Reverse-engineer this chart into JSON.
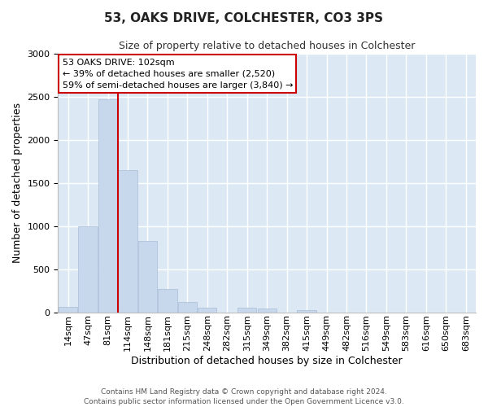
{
  "title": "53, OAKS DRIVE, COLCHESTER, CO3 3PS",
  "subtitle": "Size of property relative to detached houses in Colchester",
  "xlabel": "Distribution of detached houses by size in Colchester",
  "ylabel": "Number of detached properties",
  "bar_color": "#c8d8ec",
  "bar_edgecolor": "#aabdd8",
  "background_color": "#dce9f5",
  "grid_color": "#ffffff",
  "fig_facecolor": "#ffffff",
  "bin_labels": [
    "14sqm",
    "47sqm",
    "81sqm",
    "114sqm",
    "148sqm",
    "181sqm",
    "215sqm",
    "248sqm",
    "282sqm",
    "315sqm",
    "349sqm",
    "382sqm",
    "415sqm",
    "449sqm",
    "482sqm",
    "516sqm",
    "549sqm",
    "583sqm",
    "616sqm",
    "650sqm",
    "683sqm"
  ],
  "bar_heights": [
    60,
    1000,
    2470,
    1650,
    830,
    270,
    120,
    55,
    0,
    55,
    40,
    0,
    20,
    0,
    0,
    0,
    0,
    0,
    0,
    0,
    0
  ],
  "ylim": [
    0,
    3000
  ],
  "yticks": [
    0,
    500,
    1000,
    1500,
    2000,
    2500,
    3000
  ],
  "property_value_bin": 2,
  "vline_color": "#cc0000",
  "annotation_title": "53 OAKS DRIVE: 102sqm",
  "annotation_line1": "← 39% of detached houses are smaller (2,520)",
  "annotation_line2": "59% of semi-detached houses are larger (3,840) →",
  "annotation_box_facecolor": "#ffffff",
  "annotation_box_edgecolor": "#cc0000",
  "footer_line1": "Contains HM Land Registry data © Crown copyright and database right 2024.",
  "footer_line2": "Contains public sector information licensed under the Open Government Licence v3.0.",
  "title_fontsize": 11,
  "subtitle_fontsize": 9,
  "axis_label_fontsize": 9,
  "tick_fontsize": 8,
  "annotation_fontsize": 8,
  "footer_fontsize": 6.5
}
